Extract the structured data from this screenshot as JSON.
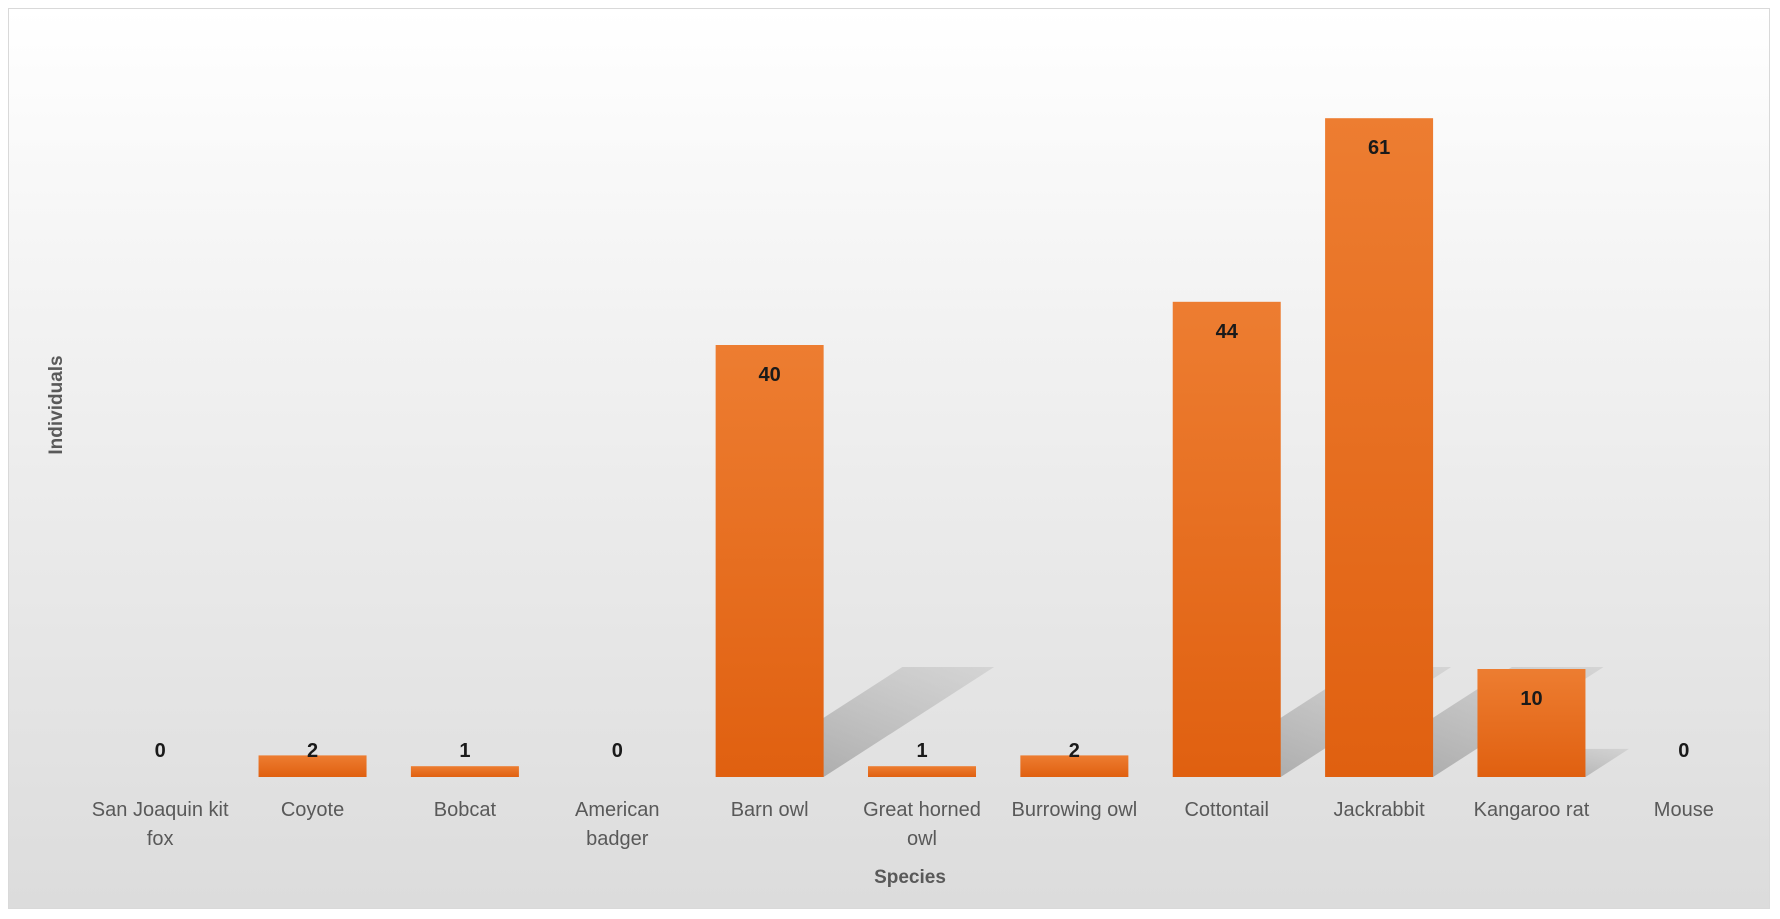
{
  "chart_data": {
    "type": "bar",
    "title": "",
    "xlabel": "Species",
    "ylabel": "Individuals",
    "categories": [
      [
        "San Joaquin kit",
        "fox"
      ],
      [
        "Coyote"
      ],
      [
        "Bobcat"
      ],
      [
        "American",
        "badger"
      ],
      [
        "Barn owl"
      ],
      [
        "Great horned",
        "owl"
      ],
      [
        "Burrowing owl"
      ],
      [
        "Cottontail"
      ],
      [
        "Jackrabbit"
      ],
      [
        "Kangaroo rat"
      ],
      [
        "Mouse"
      ]
    ],
    "values": [
      0,
      2,
      1,
      0,
      40,
      1,
      2,
      44,
      61,
      10,
      0
    ],
    "ylim": [
      0,
      65
    ],
    "grid": false,
    "legend": "none",
    "colors": {
      "bar_top": "#ed7d31",
      "bar_bottom": "#e06010",
      "shadow": "#9a9a9a"
    }
  }
}
